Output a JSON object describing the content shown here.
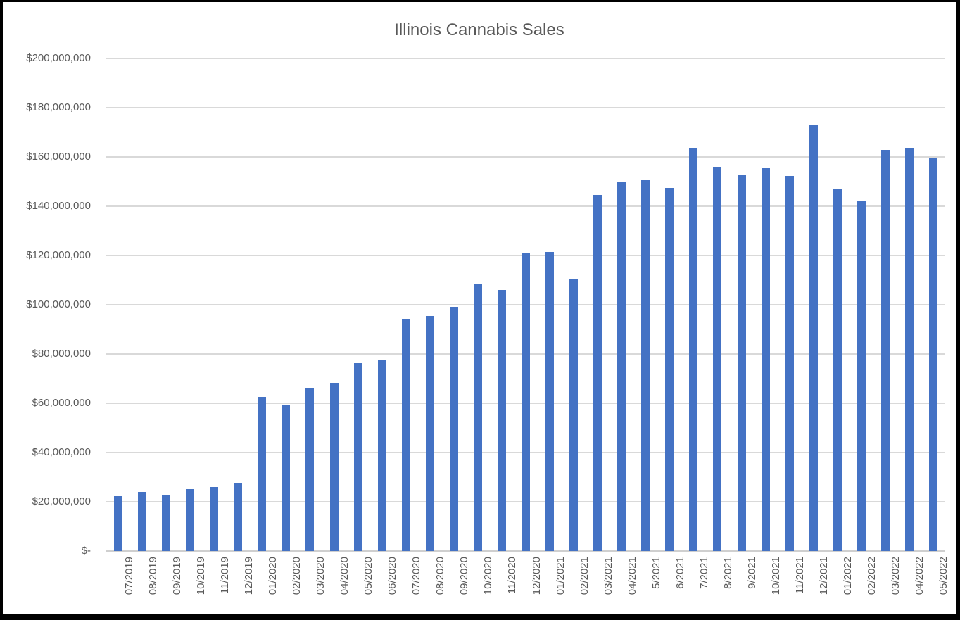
{
  "chart_data": {
    "type": "bar",
    "title": "Illinois Cannabis Sales",
    "xlabel": "",
    "ylabel": "",
    "ylim": [
      0,
      200000000
    ],
    "ytick_step": 20000000,
    "grid": true,
    "legend": false,
    "bar_color": "#4472C4",
    "categories": [
      "07/2019",
      "08/2019",
      "09/2019",
      "10/2019",
      "11/2019",
      "12/2019",
      "01/2020",
      "02/2020",
      "03/2020",
      "04/2020",
      "05/2020",
      "06/2020",
      "07/2020",
      "08/2020",
      "09/2020",
      "10/2020",
      "11/2020",
      "12/2020",
      "01/2021",
      "02/2021",
      "03/2021",
      "04/2021",
      "5/2021",
      "6/2021",
      "7/2021",
      "8/2021",
      "9/2021",
      "10/2021",
      "11/2021",
      "12/2021",
      "01/2022",
      "02/2022",
      "03/2022",
      "04/2022",
      "05/2022"
    ],
    "values": [
      22300000,
      23900000,
      22600000,
      25100000,
      26100000,
      27300000,
      62500000,
      59500000,
      66000000,
      68300000,
      76200000,
      77300000,
      94300000,
      95400000,
      99100000,
      108200000,
      105900000,
      121200000,
      121300000,
      110300000,
      144700000,
      150100000,
      150500000,
      147400000,
      163500000,
      156000000,
      152700000,
      155300000,
      152200000,
      173200000,
      147000000,
      142100000,
      162900000,
      163500000,
      159800000
    ]
  },
  "y_axis": {
    "tick_labels": [
      "$-",
      "$20,000,000",
      "$40,000,000",
      "$60,000,000",
      "$80,000,000",
      "$100,000,000",
      "$120,000,000",
      "$140,000,000",
      "$160,000,000",
      "$180,000,000",
      "$200,000,000"
    ]
  },
  "colors": {
    "bar": "#4472C4",
    "gridline": "#D9D9D9",
    "axis_text": "#595959",
    "title_text": "#595959",
    "background": "#FFFFFF",
    "border": "#000000"
  }
}
